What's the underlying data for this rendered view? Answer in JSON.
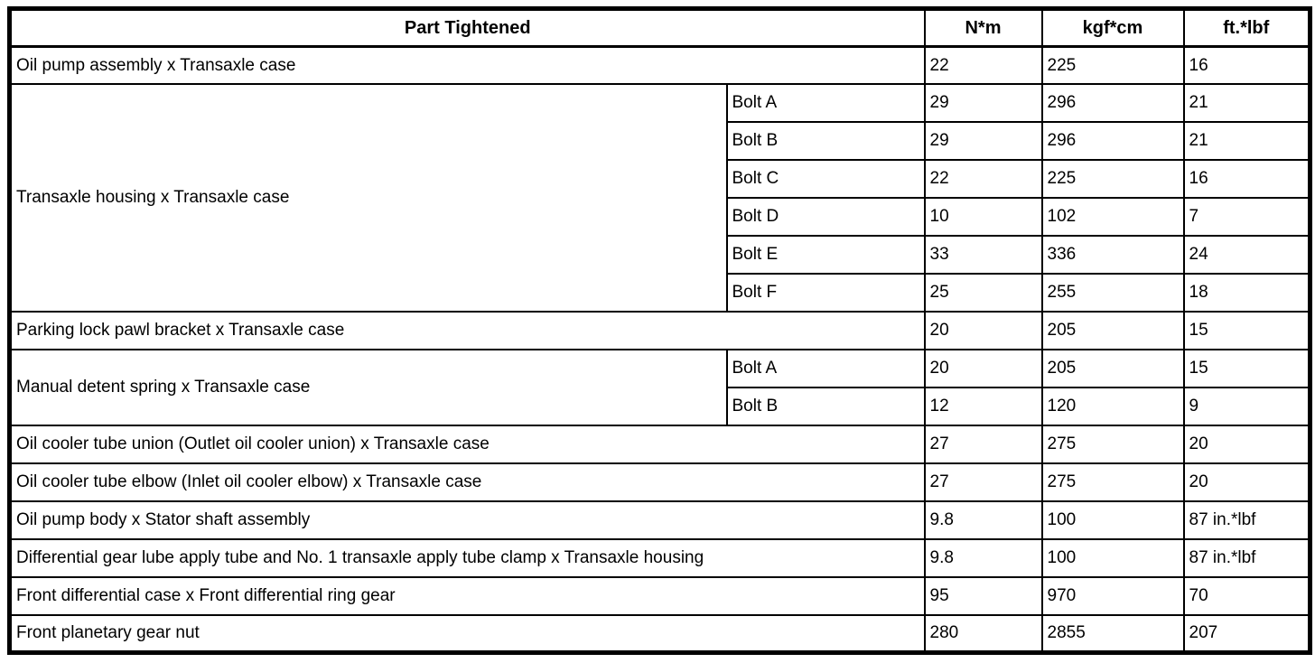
{
  "table": {
    "headers": {
      "part": "Part Tightened",
      "nm": "N*m",
      "kgfcm": "kgf*cm",
      "ftlbf": "ft.*lbf"
    },
    "rows": [
      {
        "part": "Oil pump assembly x Transaxle case",
        "nm": "22",
        "kgfcm": "225",
        "ftlbf": "16"
      },
      {
        "part": "Transaxle housing x Transaxle case",
        "sub": "Bolt A",
        "nm": "29",
        "kgfcm": "296",
        "ftlbf": "21"
      },
      {
        "sub": "Bolt B",
        "nm": "29",
        "kgfcm": "296",
        "ftlbf": "21"
      },
      {
        "sub": "Bolt C",
        "nm": "22",
        "kgfcm": "225",
        "ftlbf": "16"
      },
      {
        "sub": "Bolt D",
        "nm": "10",
        "kgfcm": "102",
        "ftlbf": "7"
      },
      {
        "sub": "Bolt E",
        "nm": "33",
        "kgfcm": "336",
        "ftlbf": "24"
      },
      {
        "sub": "Bolt F",
        "nm": "25",
        "kgfcm": "255",
        "ftlbf": "18"
      },
      {
        "part": "Parking lock pawl bracket x Transaxle case",
        "nm": "20",
        "kgfcm": "205",
        "ftlbf": "15"
      },
      {
        "part": "Manual detent spring x Transaxle case",
        "sub": "Bolt A",
        "nm": "20",
        "kgfcm": "205",
        "ftlbf": "15"
      },
      {
        "sub": "Bolt B",
        "nm": "12",
        "kgfcm": "120",
        "ftlbf": "9"
      },
      {
        "part": "Oil cooler tube union (Outlet oil cooler union) x Transaxle case",
        "nm": "27",
        "kgfcm": "275",
        "ftlbf": "20"
      },
      {
        "part": "Oil cooler tube elbow (Inlet oil cooler elbow) x Transaxle case",
        "nm": "27",
        "kgfcm": "275",
        "ftlbf": "20"
      },
      {
        "part": "Oil pump body x Stator shaft assembly",
        "nm": "9.8",
        "kgfcm": "100",
        "ftlbf": "87 in.*lbf"
      },
      {
        "part": "Differential gear lube apply tube and No. 1 transaxle apply tube clamp x Transaxle housing",
        "nm": "9.8",
        "kgfcm": "100",
        "ftlbf": "87 in.*lbf"
      },
      {
        "part": "Front differential case x Front differential ring gear",
        "nm": "95",
        "kgfcm": "970",
        "ftlbf": "70"
      },
      {
        "part": "Front planetary gear nut",
        "nm": "280",
        "kgfcm": "2855",
        "ftlbf": "207"
      }
    ]
  }
}
